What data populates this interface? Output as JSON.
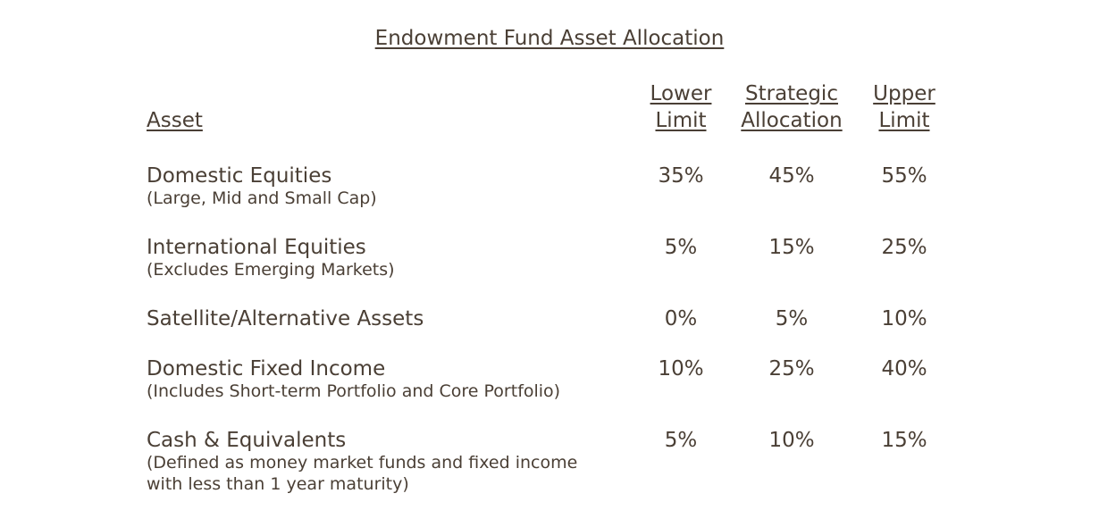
{
  "title": "Endowment Fund Asset Allocation",
  "headers": {
    "asset": "Asset",
    "lower": [
      "Lower",
      "Limit"
    ],
    "strategic": [
      "Strategic",
      "Allocation"
    ],
    "upper": [
      "Upper",
      "Limit"
    ]
  },
  "rows": [
    {
      "name": "Domestic Equities",
      "note": "(Large, Mid and Small Cap)",
      "lower": "35%",
      "strategic": "45%",
      "upper": "55%"
    },
    {
      "name": "International Equities",
      "note": "(Excludes Emerging Markets)",
      "lower": "5%",
      "strategic": "15%",
      "upper": "25%"
    },
    {
      "name": "Satellite/Alternative Assets",
      "note": "",
      "lower": "0%",
      "strategic": "5%",
      "upper": "10%"
    },
    {
      "name": "Domestic Fixed Income",
      "note": "(Includes Short-term Portfolio and Core Portfolio)",
      "lower": "10%",
      "strategic": "25%",
      "upper": "40%"
    },
    {
      "name": "Cash & Equivalents",
      "note": "(Defined as money market funds and fixed income\nwith less than 1 year maturity)",
      "lower": "5%",
      "strategic": "10%",
      "upper": "15%"
    }
  ]
}
